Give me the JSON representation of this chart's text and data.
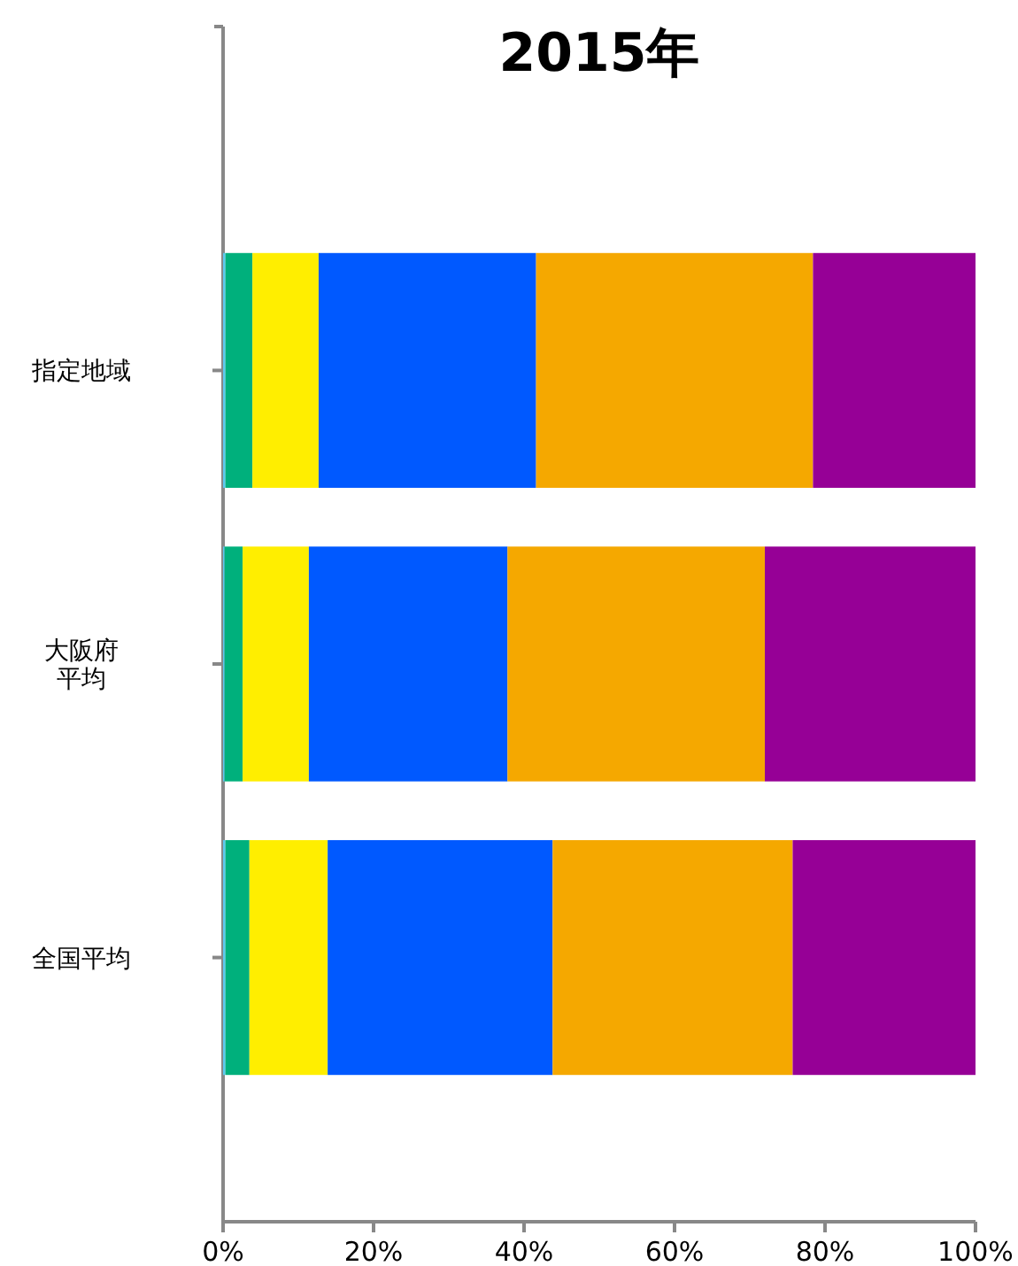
{
  "chart_data": {
    "type": "bar",
    "orientation": "horizontal",
    "stacked": true,
    "title": "2015年",
    "categories": [
      "指定地域",
      "大阪府平均",
      "全国平均"
    ],
    "series": [
      {
        "color": "#5cc8f0",
        "values": [
          0.3,
          0.2,
          0.3
        ]
      },
      {
        "color": "#00b07c",
        "values": [
          3.6,
          2.4,
          3.2
        ]
      },
      {
        "color": "#ffee00",
        "values": [
          8.8,
          8.8,
          10.4
        ]
      },
      {
        "color": "#0059ff",
        "values": [
          28.9,
          26.4,
          29.9
        ]
      },
      {
        "color": "#f5a800",
        "values": [
          36.8,
          34.2,
          31.9
        ]
      },
      {
        "color": "#960096",
        "values": [
          21.6,
          28.0,
          24.3
        ]
      }
    ],
    "xlim": [
      0,
      100
    ],
    "xticks": [
      {
        "value": 0,
        "label": "0%"
      },
      {
        "value": 20,
        "label": "20%"
      },
      {
        "value": 40,
        "label": "40%"
      },
      {
        "value": 60,
        "label": "60%"
      },
      {
        "value": 80,
        "label": "80%"
      },
      {
        "value": 100,
        "label": "100%"
      }
    ],
    "grid": false
  }
}
